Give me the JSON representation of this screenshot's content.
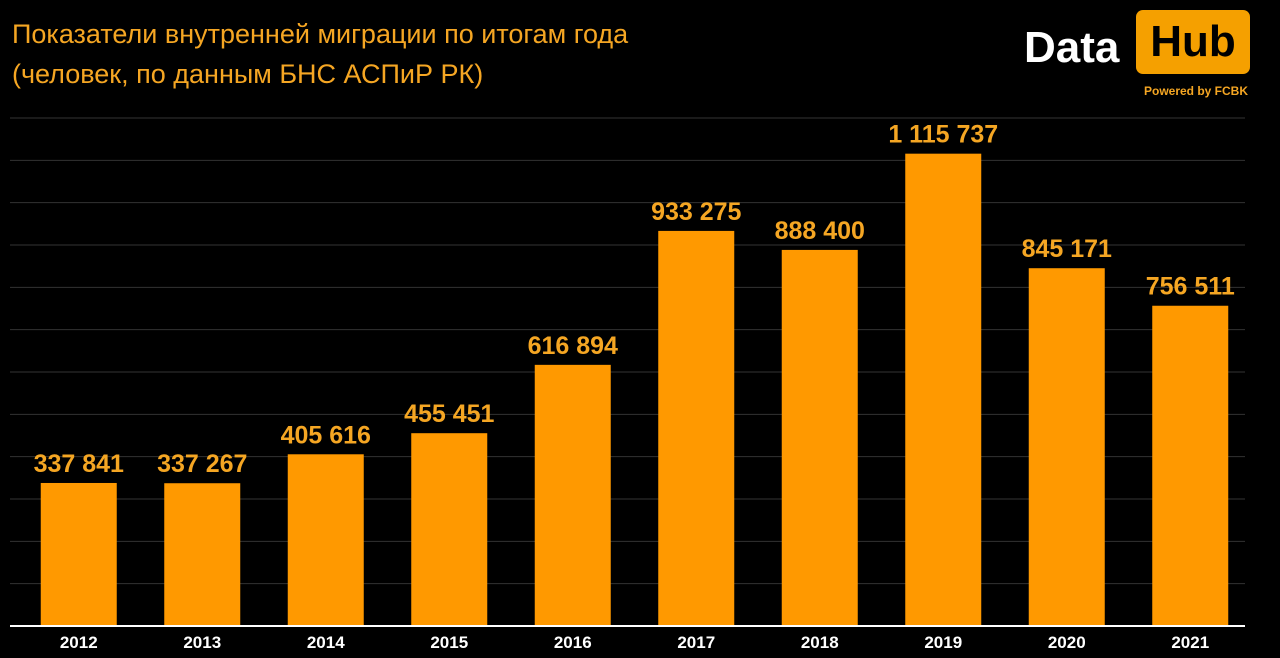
{
  "title": {
    "line1": "Показатели внутренней миграции по итогам года",
    "line2": "(человек, по данным БНС АСПиР РК)"
  },
  "logo": {
    "word1": "Data",
    "word2": "Hub",
    "tagline": "Powered by FCBK"
  },
  "colors": {
    "background": "#000000",
    "bar": "#ff9900",
    "label": "#f5a623",
    "grid": "#333333",
    "axis_text": "#ffffff"
  },
  "chart_data": {
    "type": "bar",
    "categories": [
      "2012",
      "2013",
      "2014",
      "2015",
      "2016",
      "2017",
      "2018",
      "2019",
      "2020",
      "2021"
    ],
    "values": [
      337841,
      337267,
      405616,
      455451,
      616894,
      933275,
      888400,
      1115737,
      845171,
      756511
    ],
    "value_labels": [
      "337 841",
      "337 267",
      "405 616",
      "455 451",
      "616 894",
      "933 275",
      "888 400",
      "1 115 737",
      "845 171",
      "756 511"
    ],
    "ylim": [
      0,
      1200000
    ],
    "grid": true,
    "legend": "none"
  }
}
